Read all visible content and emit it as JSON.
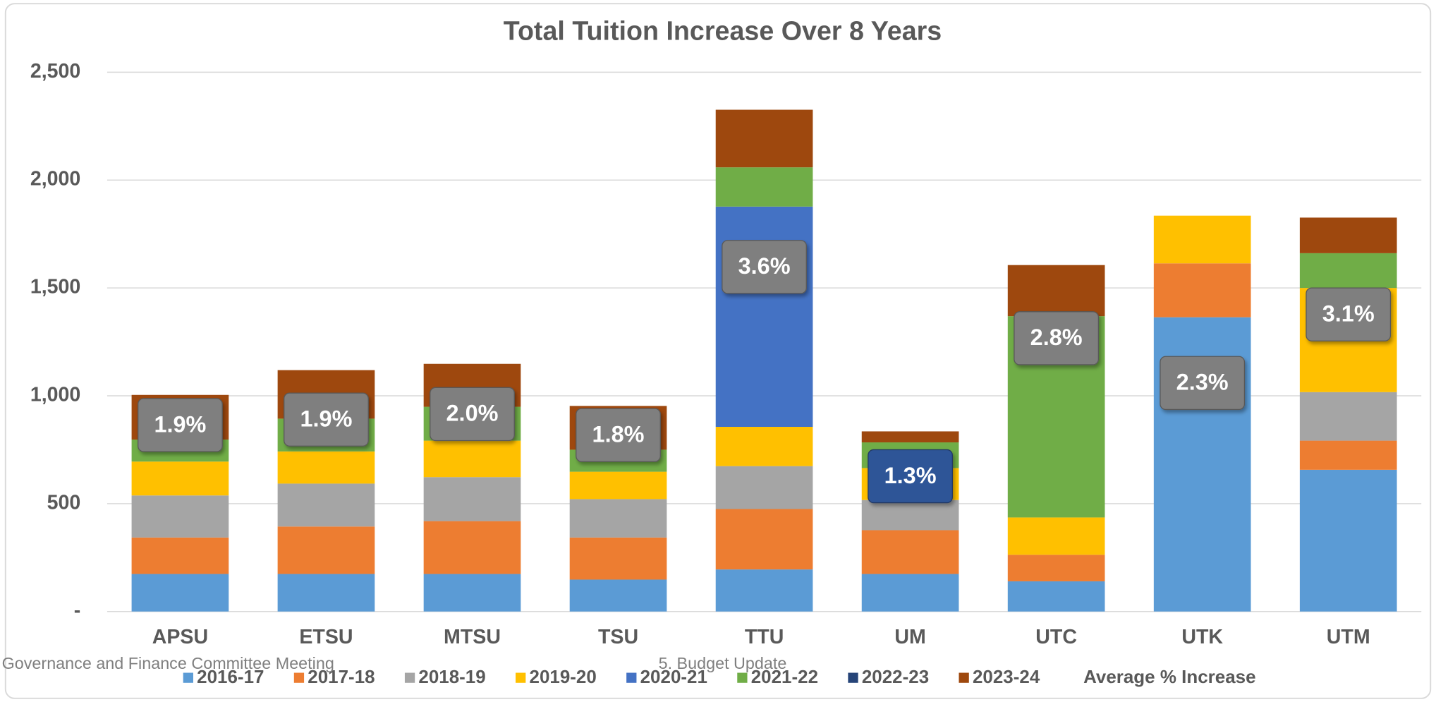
{
  "chart_data": {
    "type": "bar",
    "stacked": true,
    "title": "Total Tuition Increase Over 8 Years",
    "categories": [
      "APSU",
      "ETSU",
      "MTSU",
      "TSU",
      "TTU",
      "UM",
      "UTC",
      "UTK",
      "UTM"
    ],
    "series": [
      {
        "name": "2016-17",
        "color": "#5b9bd5",
        "values": [
          174,
          174,
          174,
          148,
          195,
          174,
          140,
          1364,
          657
        ]
      },
      {
        "name": "2017-18",
        "color": "#ed7d31",
        "values": [
          169,
          220,
          245,
          195,
          280,
          203,
          123,
          250,
          135
        ]
      },
      {
        "name": "2018-19",
        "color": "#a5a5a5",
        "values": [
          195,
          199,
          204,
          178,
          199,
          140,
          0,
          0,
          225
        ]
      },
      {
        "name": "2019-20",
        "color": "#ffc000",
        "values": [
          157,
          149,
          169,
          127,
          182,
          148,
          173,
          221,
          483
        ]
      },
      {
        "name": "2020-21",
        "color": "#4472c4",
        "values": [
          0,
          0,
          0,
          0,
          1021,
          0,
          0,
          0,
          0
        ]
      },
      {
        "name": "2021-22",
        "color": "#70ad47",
        "values": [
          102,
          152,
          157,
          102,
          182,
          119,
          933,
          0,
          161
        ]
      },
      {
        "name": "2022-23",
        "color": "#264478",
        "values": [
          0,
          0,
          0,
          0,
          0,
          0,
          0,
          0,
          0
        ]
      },
      {
        "name": "2023-24",
        "color": "#9e480e",
        "values": [
          207,
          225,
          199,
          203,
          267,
          51,
          237,
          0,
          165
        ]
      }
    ],
    "average": {
      "name": "Average % Increase",
      "color": "#7f7f7f",
      "values": [
        1.9,
        1.9,
        2.0,
        1.8,
        3.6,
        1.3,
        2.8,
        2.3,
        3.1
      ],
      "value_labels": [
        "1.9%",
        "1.9%",
        "2.0%",
        "1.8%",
        "3.6%",
        "1.3%",
        "2.8%",
        "2.3%",
        "3.1%"
      ]
    },
    "ylim": [
      0,
      2500
    ],
    "yticks": [
      {
        "value": 0,
        "label": "-"
      },
      500,
      {
        "value": 1000,
        "label": "1,000"
      },
      {
        "value": 1500,
        "label": "1,500"
      },
      {
        "value": 2000,
        "label": "2,000"
      },
      {
        "value": 2500,
        "label": "2,500"
      }
    ],
    "grid": true,
    "legend": "bottom"
  },
  "footer_left": "Governance and Finance Committee Meeting",
  "footer_center": "5. Budget Update"
}
